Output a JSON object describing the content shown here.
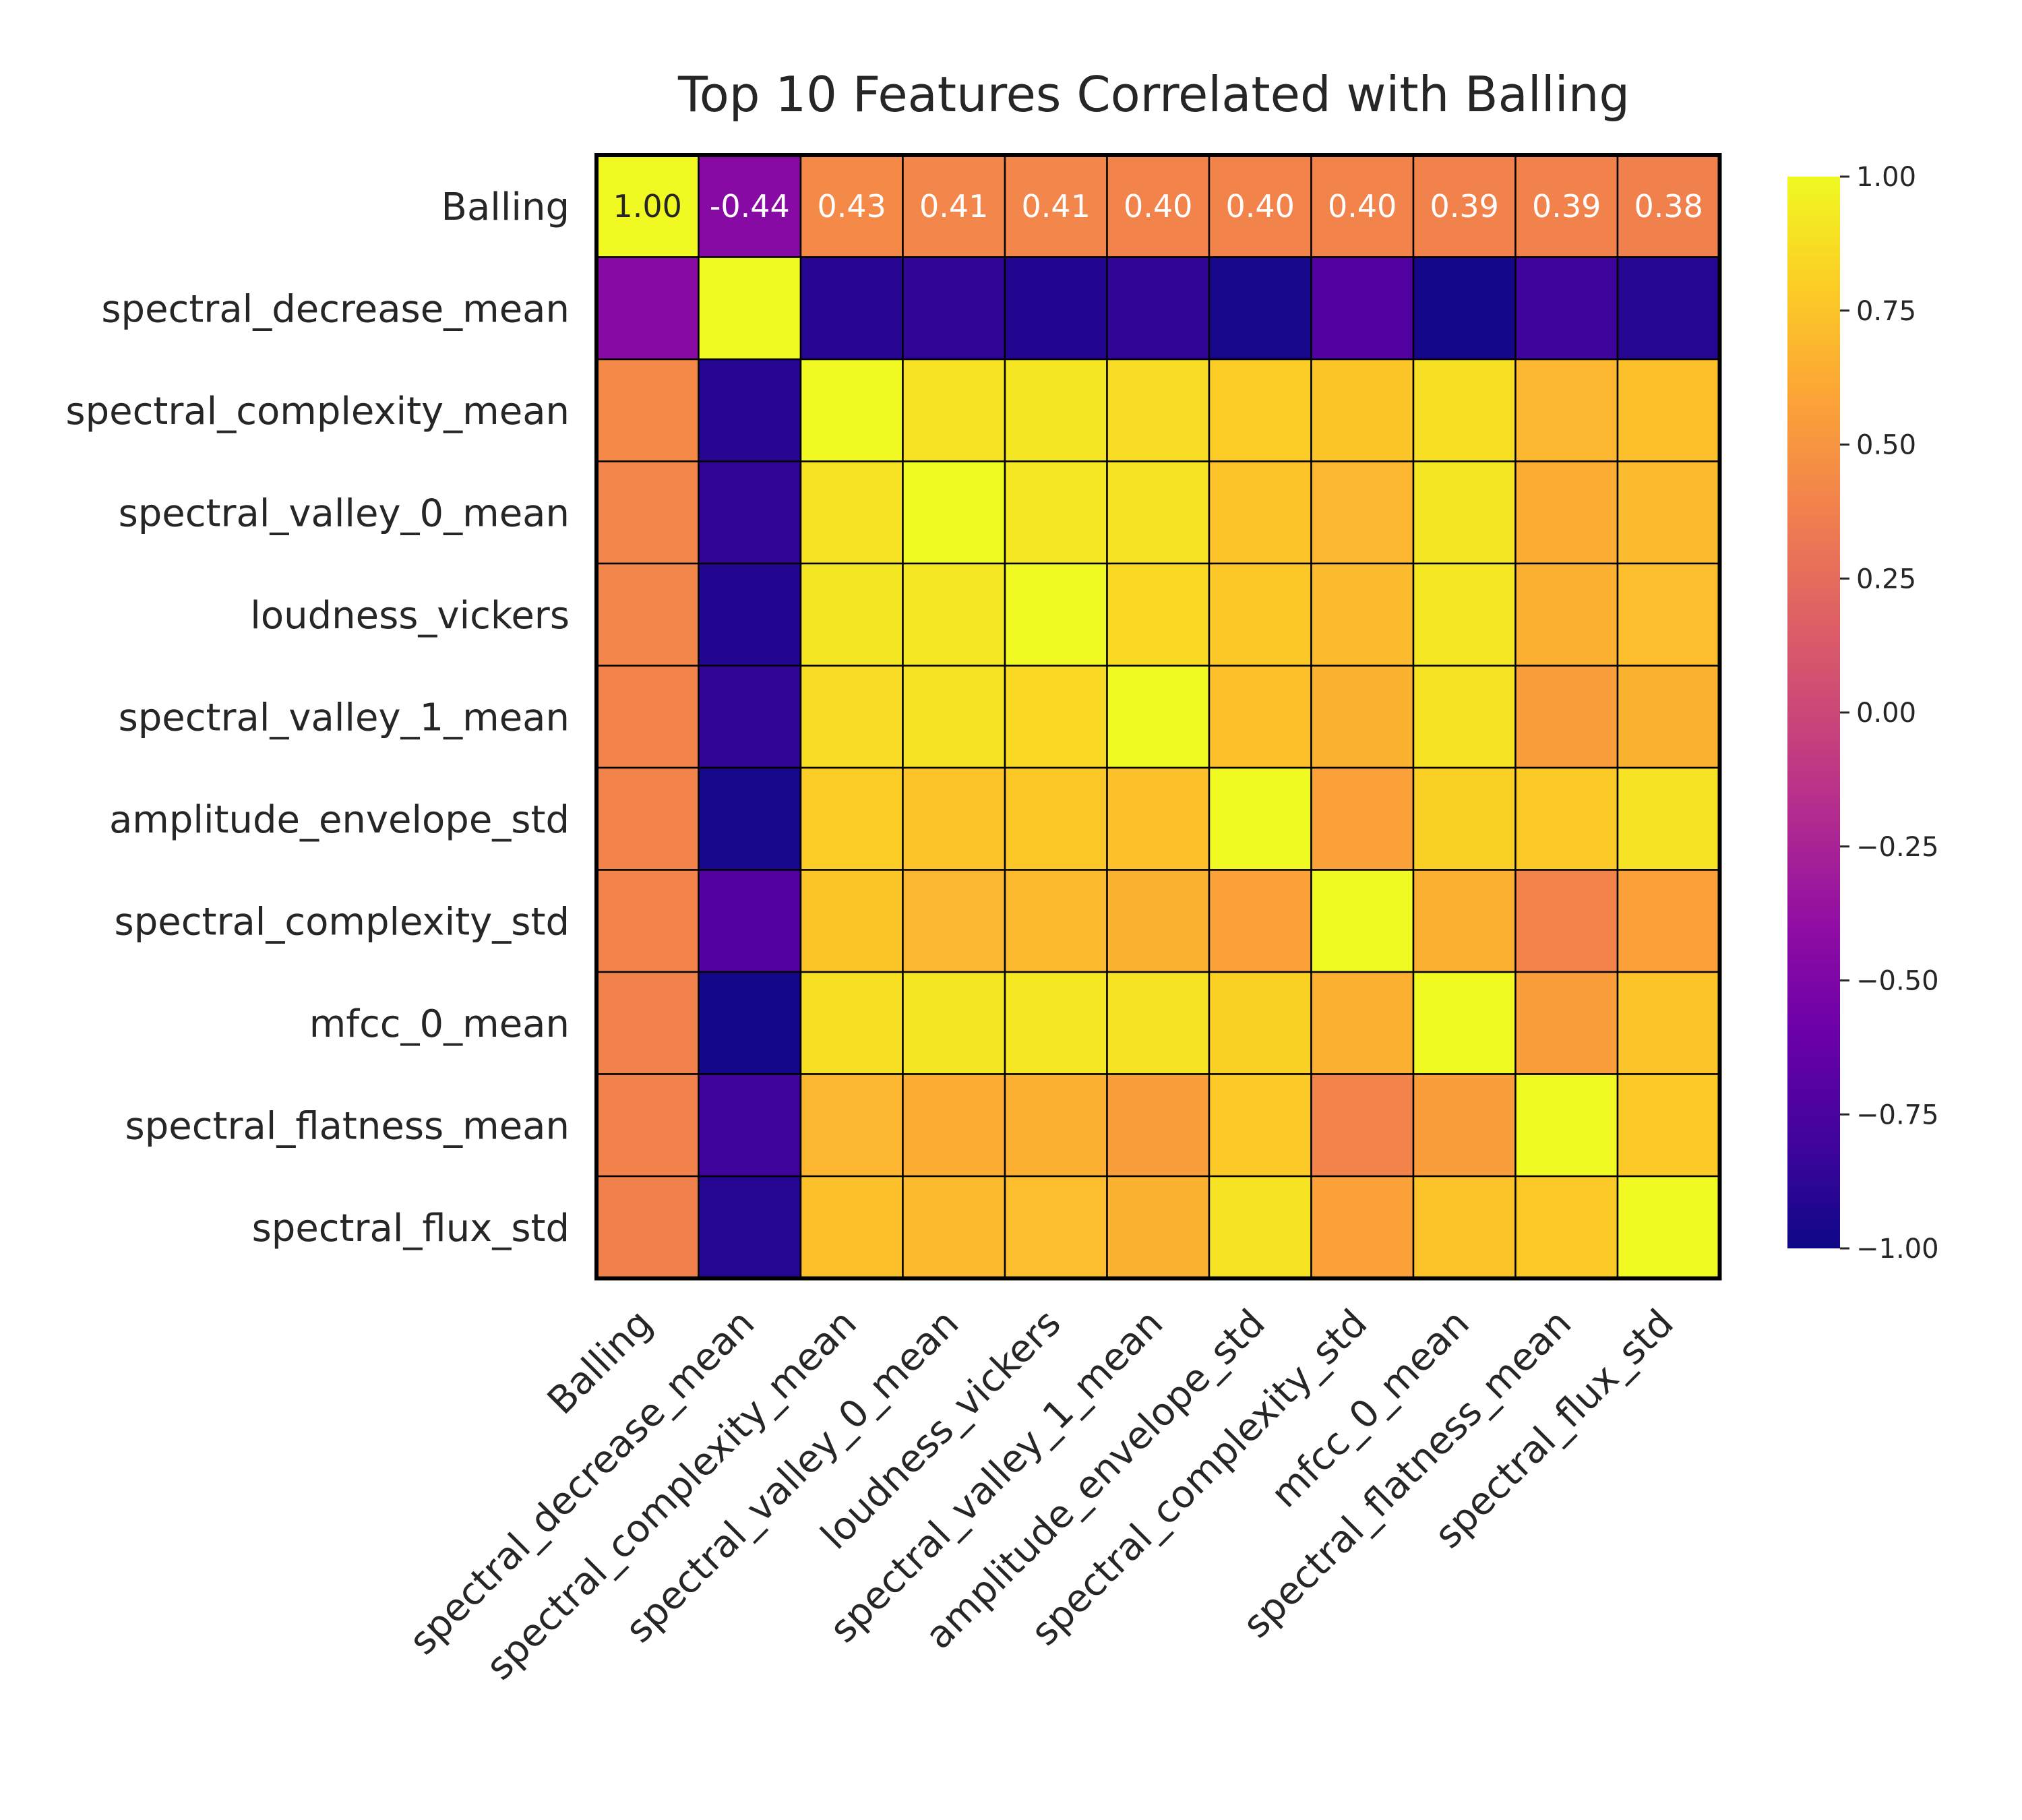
{
  "chart_data": {
    "type": "heatmap",
    "title": "Top 10 Features Correlated with Balling",
    "rows": [
      "Balling",
      "spectral_decrease_mean",
      "spectral_complexity_mean",
      "spectral_valley_0_mean",
      "loudness_vickers",
      "spectral_valley_1_mean",
      "amplitude_envelope_std",
      "spectral_complexity_std",
      "mfcc_0_mean",
      "spectral_flatness_mean",
      "spectral_flux_std"
    ],
    "columns": [
      "Balling",
      "spectral_decrease_mean",
      "spectral_complexity_mean",
      "spectral_valley_0_mean",
      "loudness_vickers",
      "spectral_valley_1_mean",
      "amplitude_envelope_std",
      "spectral_complexity_std",
      "mfcc_0_mean",
      "spectral_flatness_mean",
      "spectral_flux_std"
    ],
    "values": [
      [
        1.0,
        -0.44,
        0.43,
        0.41,
        0.41,
        0.4,
        0.4,
        0.4,
        0.39,
        0.39,
        0.38
      ],
      [
        -0.44,
        1.0,
        -0.9,
        -0.87,
        -0.92,
        -0.86,
        -0.96,
        -0.72,
        -0.97,
        -0.81,
        -0.91
      ],
      [
        0.43,
        -0.9,
        1.0,
        0.89,
        0.91,
        0.87,
        0.79,
        0.76,
        0.88,
        0.68,
        0.73
      ],
      [
        0.41,
        -0.87,
        0.89,
        1.0,
        0.92,
        0.9,
        0.75,
        0.68,
        0.91,
        0.63,
        0.7
      ],
      [
        0.41,
        -0.92,
        0.91,
        0.92,
        1.0,
        0.85,
        0.77,
        0.7,
        0.92,
        0.65,
        0.72
      ],
      [
        0.4,
        -0.86,
        0.87,
        0.9,
        0.85,
        1.0,
        0.73,
        0.66,
        0.9,
        0.55,
        0.66
      ],
      [
        0.4,
        -0.96,
        0.79,
        0.75,
        0.77,
        0.73,
        1.0,
        0.57,
        0.81,
        0.78,
        0.9
      ],
      [
        0.4,
        -0.72,
        0.76,
        0.68,
        0.7,
        0.66,
        0.57,
        1.0,
        0.65,
        0.4,
        0.57
      ],
      [
        0.39,
        -0.97,
        0.88,
        0.91,
        0.92,
        0.9,
        0.81,
        0.65,
        1.0,
        0.55,
        0.75
      ],
      [
        0.39,
        -0.81,
        0.68,
        0.63,
        0.65,
        0.55,
        0.78,
        0.4,
        0.55,
        1.0,
        0.78
      ],
      [
        0.38,
        -0.91,
        0.73,
        0.7,
        0.72,
        0.66,
        0.9,
        0.57,
        0.75,
        0.78,
        1.0
      ]
    ],
    "annotated_row_labels": [
      "1.00",
      "-0.44",
      "0.43",
      "0.41",
      "0.41",
      "0.40",
      "0.40",
      "0.40",
      "0.39",
      "0.39",
      "0.38"
    ],
    "vmin": -1.0,
    "vmax": 1.0,
    "colormap": "plasma",
    "colorbar_ticks": [
      "1.00",
      "0.75",
      "0.50",
      "0.25",
      "0.00",
      "−0.25",
      "−0.50",
      "−0.75",
      "−1.00"
    ],
    "colorbar_tick_values": [
      1.0,
      0.75,
      0.5,
      0.25,
      0.0,
      -0.25,
      -0.5,
      -0.75,
      -1.0
    ],
    "grid": true,
    "cell_edge_color": "#000000"
  }
}
